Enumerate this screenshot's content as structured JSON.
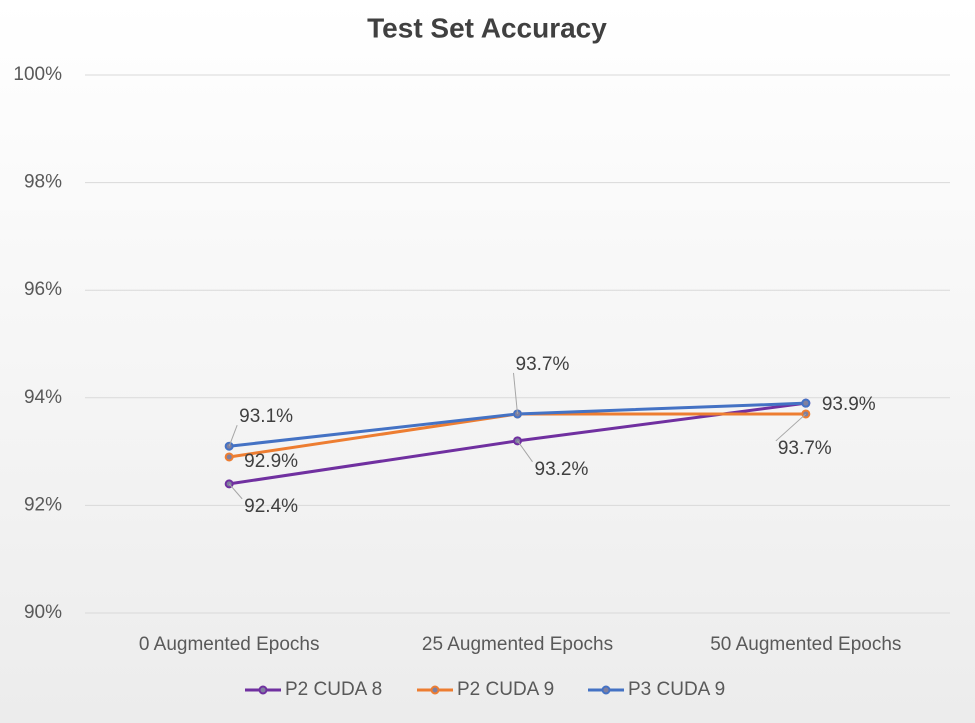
{
  "chart_data": {
    "type": "line",
    "title": "Test Set Accuracy",
    "categories": [
      "0 Augmented Epochs",
      "25 Augmented Epochs",
      "50 Augmented Epochs"
    ],
    "series": [
      {
        "name": "P2 CUDA 8",
        "color": "#7030a0",
        "values": [
          92.4,
          93.2,
          93.9
        ],
        "value_labels": [
          "92.4%",
          "93.2%",
          null
        ]
      },
      {
        "name": "P2 CUDA 9",
        "color": "#ed7d31",
        "values": [
          92.9,
          93.7,
          93.7
        ],
        "value_labels": [
          "92.9%",
          null,
          "93.7%"
        ]
      },
      {
        "name": "P3 CUDA 9",
        "color": "#4472c4",
        "values": [
          93.1,
          93.7,
          93.9
        ],
        "value_labels": [
          "93.1%",
          "93.7%",
          "93.9%"
        ]
      }
    ],
    "ylim": [
      90,
      100
    ],
    "yticks": [
      {
        "value": 90,
        "label": "90%"
      },
      {
        "value": 92,
        "label": "92%"
      },
      {
        "value": 94,
        "label": "94%"
      },
      {
        "value": 96,
        "label": "96%"
      },
      {
        "value": 98,
        "label": "98%"
      },
      {
        "value": 100,
        "label": "100%"
      }
    ],
    "grid": true,
    "legend": "bottom"
  }
}
